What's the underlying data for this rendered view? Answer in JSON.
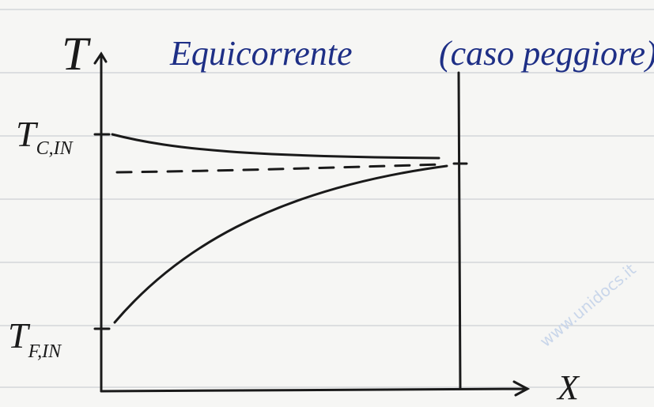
{
  "title": "Equicorrente",
  "note": "(caso peggiore)",
  "axes": {
    "y": "T",
    "x": "X"
  },
  "labels": [
    {
      "main": "T",
      "sub": "C,IN"
    },
    {
      "main": "T",
      "sub": "F,IN"
    }
  ],
  "watermark": "www.unidocs.it"
}
